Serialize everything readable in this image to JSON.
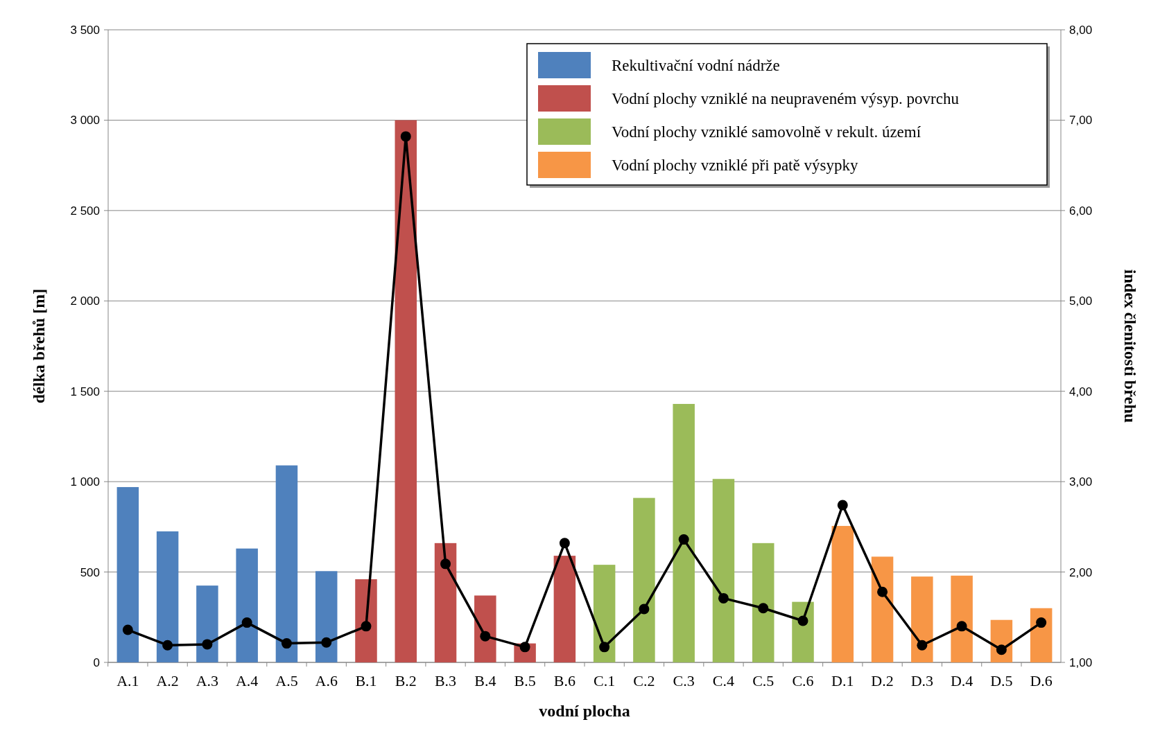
{
  "chart_data": {
    "type": "bar",
    "xlabel": "vodní plocha",
    "ylabel": "délka břehů [m]",
    "y2label": "index členitosti břehu",
    "categories": [
      "A.1",
      "A.2",
      "A.3",
      "A.4",
      "A.5",
      "A.6",
      "B.1",
      "B.2",
      "B.3",
      "B.4",
      "B.5",
      "B.6",
      "C.1",
      "C.2",
      "C.3",
      "C.4",
      "C.5",
      "C.6",
      "D.1",
      "D.2",
      "D.3",
      "D.4",
      "D.5",
      "D.6"
    ],
    "series": [
      {
        "name": "Rekultivační vodní nádrže",
        "color": "#4f81bd",
        "values": [
          970,
          725,
          425,
          630,
          1090,
          505,
          null,
          null,
          null,
          null,
          null,
          null,
          null,
          null,
          null,
          null,
          null,
          null,
          null,
          null,
          null,
          null,
          null,
          null
        ]
      },
      {
        "name": "Vodní plochy vzniklé na neupraveném výsyp. povrchu",
        "color": "#c0504d",
        "values": [
          null,
          null,
          null,
          null,
          null,
          null,
          460,
          3000,
          660,
          370,
          105,
          590,
          null,
          null,
          null,
          null,
          null,
          null,
          null,
          null,
          null,
          null,
          null,
          null
        ]
      },
      {
        "name": "Vodní plochy vzniklé samovolně v rekult. území",
        "color": "#9bbb59",
        "values": [
          null,
          null,
          null,
          null,
          null,
          null,
          null,
          null,
          null,
          null,
          null,
          null,
          540,
          910,
          1430,
          1015,
          660,
          335,
          null,
          null,
          null,
          null,
          null,
          null
        ]
      },
      {
        "name": "Vodní plochy vzniklé při patě výsypky",
        "color": "#f79646",
        "values": [
          null,
          null,
          null,
          null,
          null,
          null,
          null,
          null,
          null,
          null,
          null,
          null,
          null,
          null,
          null,
          null,
          null,
          null,
          755,
          585,
          475,
          480,
          235,
          300
        ]
      },
      {
        "type": "line",
        "axis": "y2",
        "color": "#000000",
        "values": [
          1.36,
          1.19,
          1.2,
          1.44,
          1.21,
          1.22,
          1.4,
          6.82,
          2.09,
          1.29,
          1.17,
          2.32,
          1.17,
          1.59,
          2.36,
          1.71,
          1.6,
          1.46,
          2.74,
          1.78,
          1.19,
          1.4,
          1.14,
          1.44
        ]
      }
    ],
    "ylim": [
      0,
      3500
    ],
    "yticks": [
      0,
      500,
      {
        "value": 1000,
        "label": "1 000"
      },
      {
        "value": 1500,
        "label": "1 500"
      },
      {
        "value": 2000,
        "label": "2 000"
      },
      {
        "value": 2500,
        "label": "2 500"
      },
      {
        "value": 3000,
        "label": "3 000"
      },
      {
        "value": 3500,
        "label": "3 500"
      }
    ],
    "y2lim": [
      1,
      8
    ],
    "y2ticks": [
      {
        "value": 1,
        "label": "1,00"
      },
      {
        "value": 2,
        "label": "2,00"
      },
      {
        "value": 3,
        "label": "3,00"
      },
      {
        "value": 4,
        "label": "4,00"
      },
      {
        "value": 5,
        "label": "5,00"
      },
      {
        "value": 6,
        "label": "6,00"
      },
      {
        "value": 7,
        "label": "7,00"
      },
      {
        "value": 8,
        "label": "8,00"
      }
    ],
    "grid": "y",
    "legend": "top right",
    "marker": "circle",
    "line_style": "solid"
  }
}
